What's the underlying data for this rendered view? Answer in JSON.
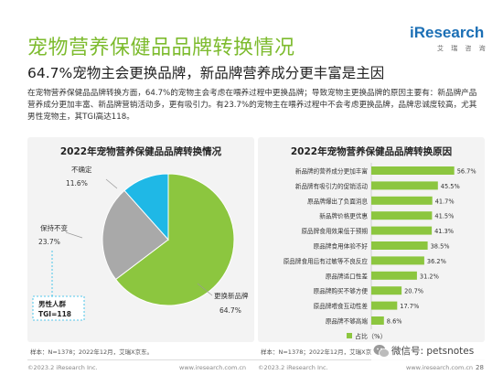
{
  "header": {
    "title": "宠物营养保健品品牌转换情况",
    "subtitle": "64.7%宠物主会更换品牌，新品牌营养成分更丰富是主因",
    "logo_text": "iResearch",
    "logo_sub": "艾 瑞 咨 询"
  },
  "intro": "在宠物营养保健品品牌转换方面，64.7%的宠物主会考虑在喂养过程中更换品牌；导致宠物主更换品牌的原因主要有：新品牌产品营养成分更加丰富、新品牌营销活动多，更有吸引力。有23.7%的宠物主在喂养过程中不会考虑更换品牌，品牌忠诚度较高，尤其男性宠物主，其TGI高达118。",
  "colors": {
    "accent": "#7dbb2e",
    "pie_replace": "#8cc63f",
    "pie_keep": "#a9a9a9",
    "pie_unsure": "#1fb8e6",
    "bar": "#8cc63f",
    "brand": "#1b6fb5"
  },
  "chart_data": [
    {
      "type": "pie",
      "title": "2022年宠物营养保健品品牌转换情况",
      "slices": [
        {
          "label": "更换新品牌",
          "value": 64.7,
          "value_label": "64.7%",
          "color": "#8cc63f"
        },
        {
          "label": "保持不变",
          "value": 23.7,
          "value_label": "23.7%",
          "color": "#a9a9a9"
        },
        {
          "label": "不确定",
          "value": 11.6,
          "value_label": "11.6%",
          "color": "#1fb8e6"
        }
      ],
      "annotation": {
        "line1": "男性人群",
        "line2": "TGI=118"
      }
    },
    {
      "type": "bar",
      "orientation": "horizontal",
      "title": "2022年宠物营养保健品品牌转换原因",
      "categories": [
        "新品牌的营养成分更加丰富",
        "新品牌有吸引力的促销活动",
        "原品牌爆出了负面消息",
        "新品牌价格更优惠",
        "原品牌食用效果低于预期",
        "原品牌食用体验不好",
        "原品牌食用后有过敏等不良反应",
        "原品牌适口性差",
        "原品牌购买不够方便",
        "原品牌喂食互动性差",
        "原品牌不够高端"
      ],
      "values": [
        56.7,
        45.5,
        41.7,
        41.5,
        41.3,
        38.5,
        36.2,
        31.2,
        20.7,
        17.7,
        8.6
      ],
      "value_labels": [
        "56.7%",
        "45.5%",
        "41.7%",
        "41.5%",
        "41.3%",
        "38.5%",
        "36.2%",
        "31.2%",
        "20.7%",
        "17.7%",
        "8.6%"
      ],
      "legend": "占比（%）",
      "xlim": [
        0,
        60
      ],
      "legend_position": "bottom"
    }
  ],
  "notes": {
    "left": "样本：N=1378；2022年12月，艾瑞X京东。",
    "right": "样本：N=1378；2022年12月，艾瑞X京"
  },
  "footer": {
    "left_copyright": "©2023.2 iResearch Inc.",
    "left_url": "www.iresearch.com.cn",
    "right_copyright": "©2023.2 iResearch Inc.",
    "right_url": "www.iresearch.com.cn",
    "page": "28"
  },
  "watermark": {
    "text": "微信号: petsnotes",
    "icon": "wechat-icon"
  }
}
